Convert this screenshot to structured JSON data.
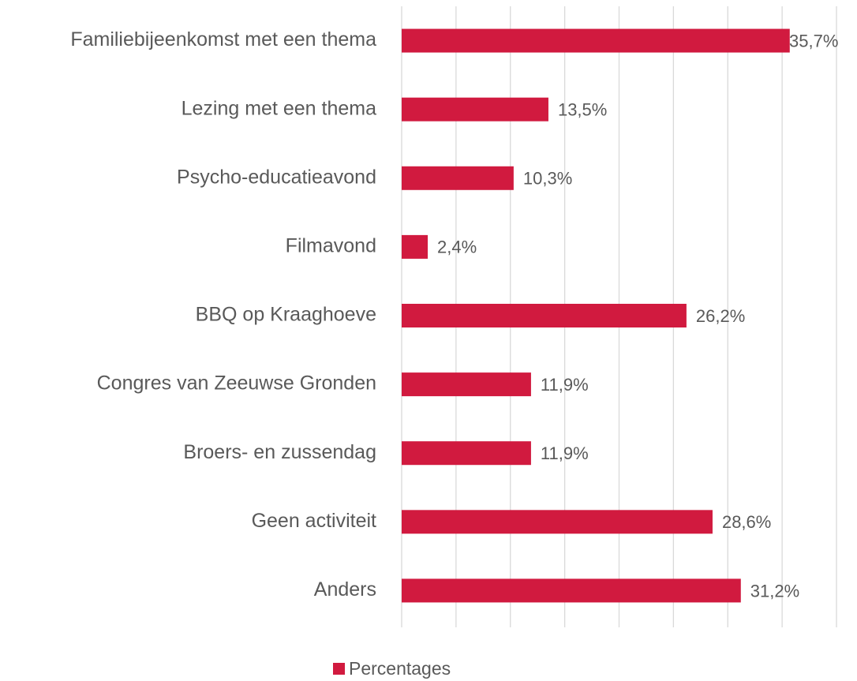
{
  "chart_data": {
    "type": "bar",
    "orientation": "horizontal",
    "categories": [
      "Familiebijeenkomst met een thema",
      "Lezing met een thema",
      "Psycho-educatieavond",
      "Filmavond",
      "BBQ op Kraaghoeve",
      "Congres van Zeeuwse Gronden",
      "Broers- en zussendag",
      "Geen activiteit",
      "Anders"
    ],
    "series": [
      {
        "name": "Percentages",
        "color": "#d11a3f",
        "values": [
          35.7,
          13.5,
          10.3,
          2.4,
          26.2,
          11.9,
          11.9,
          28.6,
          31.2
        ],
        "value_labels": [
          "35,7%",
          "13,5%",
          "10,3%",
          "2,4%",
          "26,2%",
          "11,9%",
          "11,9%",
          "28,6%",
          "31,2%"
        ]
      }
    ],
    "xlim": [
      0,
      40
    ],
    "xticks": [
      0,
      5,
      10,
      15,
      20,
      25,
      30,
      35,
      40
    ],
    "grid": true,
    "legend": "bottom"
  }
}
